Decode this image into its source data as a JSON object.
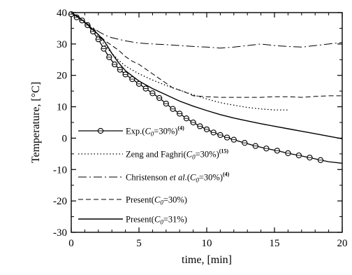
{
  "chart_data": {
    "type": "line",
    "xlabel": "time, [min]",
    "ylabel": "Temperature, [°C]",
    "xlim": [
      0,
      20
    ],
    "ylim": [
      -30,
      40
    ],
    "x_ticks": [
      0,
      5,
      10,
      15,
      20
    ],
    "y_ticks": [
      40,
      30,
      20,
      10,
      0,
      -10,
      -20,
      -30
    ],
    "grid": false,
    "legend_position": "bottom-left",
    "series": [
      {
        "name": "Exp.(C0=30%)(4)",
        "label_parts": {
          "pre": "Exp.(",
          "italic": "C",
          "sub": "0",
          "post": "=30%)",
          "sup": "(4)"
        },
        "style": "solid-circle-markers",
        "x": [
          0.0,
          0.4,
          0.8,
          1.2,
          1.6,
          2.0,
          2.4,
          2.8,
          3.2,
          3.6,
          4.0,
          4.5,
          5.0,
          5.5,
          6.0,
          6.5,
          7.0,
          7.5,
          8.0,
          8.5,
          9.0,
          9.5,
          10.0,
          10.5,
          11.0,
          11.5,
          12.0,
          12.8,
          13.6,
          14.4,
          15.2,
          16.0,
          16.8,
          17.6,
          18.4,
          19.0,
          20.0
        ],
        "y": [
          39.5,
          38.5,
          37.5,
          36.0,
          34.0,
          31.5,
          28.5,
          25.8,
          23.5,
          21.8,
          20.3,
          18.8,
          17.3,
          15.8,
          14.3,
          12.8,
          11.0,
          9.3,
          7.8,
          6.3,
          5.0,
          3.8,
          2.8,
          1.8,
          1.0,
          0.2,
          -0.5,
          -1.5,
          -2.5,
          -3.3,
          -4.0,
          -4.8,
          -5.5,
          -6.2,
          -7.0,
          -7.5,
          -8.0
        ],
        "marker_x": [
          0.0,
          0.4,
          0.8,
          1.2,
          1.6,
          2.0,
          2.4,
          2.8,
          3.2,
          3.6,
          4.0,
          4.5,
          5.0,
          5.5,
          6.0,
          6.5,
          7.0,
          7.5,
          8.0,
          8.5,
          9.0,
          9.5,
          10.0,
          10.5,
          11.0,
          11.5,
          12.0,
          12.8,
          13.6,
          14.4,
          15.2,
          16.0,
          16.8,
          17.6,
          18.4
        ],
        "marker_y": [
          39.5,
          38.5,
          37.5,
          36.0,
          34.0,
          31.5,
          28.5,
          25.8,
          23.5,
          21.8,
          20.3,
          18.8,
          17.3,
          15.8,
          14.3,
          12.8,
          11.0,
          9.3,
          7.8,
          6.3,
          5.0,
          3.8,
          2.8,
          1.8,
          1.0,
          0.2,
          -0.5,
          -1.5,
          -2.5,
          -3.3,
          -4.0,
          -4.8,
          -5.5,
          -6.2,
          -7.0
        ]
      },
      {
        "name": "Zeng and Faghri(C0=30%)(15)",
        "label_parts": {
          "pre": "Zeng and Faghri(",
          "italic": "C",
          "sub": "0",
          "post": "=30%)",
          "sup": "(15)"
        },
        "style": "dotted",
        "x": [
          0.0,
          0.5,
          1.0,
          1.5,
          2.0,
          2.5,
          3.0,
          3.5,
          4.0,
          5.0,
          6.0,
          7.0,
          8.0,
          9.0,
          10.0,
          11.0,
          12.0,
          13.0,
          14.0,
          15.0,
          16.0
        ],
        "y": [
          40.0,
          38.5,
          37.0,
          35.0,
          32.5,
          29.5,
          27.0,
          24.8,
          23.0,
          20.5,
          18.5,
          16.8,
          15.3,
          13.8,
          12.5,
          11.3,
          10.5,
          9.8,
          9.3,
          9.0,
          9.0
        ]
      },
      {
        "name": "Christenson et al.(C0=30%)(4)",
        "label_parts": {
          "pre": "Christenson ",
          "italic_text": "et al.",
          "mid": "(",
          "italic": "C",
          "sub": "0",
          "post": "=30%)",
          "sup": "(4)"
        },
        "style": "dash-dot",
        "x": [
          0.0,
          0.5,
          1.0,
          1.5,
          2.0,
          2.5,
          3.0,
          3.5,
          4.0,
          5.0,
          6.0,
          7.0,
          8.0,
          9.0,
          10.0,
          11.0,
          12.0,
          13.0,
          14.0,
          15.0,
          16.0,
          17.0,
          18.0,
          19.0,
          20.0
        ],
        "y": [
          40.0,
          38.5,
          37.0,
          35.5,
          34.0,
          32.8,
          32.0,
          31.5,
          31.0,
          30.3,
          30.0,
          29.8,
          29.5,
          29.2,
          29.0,
          28.7,
          29.0,
          29.5,
          30.0,
          29.5,
          29.2,
          29.0,
          29.5,
          30.0,
          30.5
        ]
      },
      {
        "name": "Present(C0=30%)",
        "label_parts": {
          "pre": "Present(",
          "italic": "C",
          "sub": "0",
          "post": "=30%)",
          "sup": ""
        },
        "style": "dashed",
        "x": [
          0.0,
          0.5,
          1.0,
          1.5,
          2.0,
          2.5,
          3.0,
          3.5,
          4.0,
          4.5,
          5.0,
          5.5,
          6.0,
          6.5,
          7.0,
          7.5,
          8.0,
          8.5,
          9.0,
          10.0,
          11.0,
          12.0,
          13.0,
          14.0,
          15.0,
          16.0,
          17.0,
          18.0,
          19.0,
          20.0
        ],
        "y": [
          40.0,
          38.5,
          37.0,
          35.0,
          33.0,
          31.0,
          29.5,
          28.0,
          26.0,
          24.5,
          23.5,
          22.0,
          20.5,
          19.0,
          17.5,
          16.0,
          15.3,
          14.5,
          13.5,
          13.2,
          13.0,
          13.0,
          13.0,
          13.0,
          13.2,
          13.2,
          13.0,
          13.3,
          13.5,
          13.5
        ]
      },
      {
        "name": "Present(C0=31%)",
        "label_parts": {
          "pre": "Present(",
          "italic": "C",
          "sub": "0",
          "post": "=31%)",
          "sup": ""
        },
        "style": "solid",
        "x": [
          0.0,
          0.5,
          1.0,
          1.5,
          2.0,
          2.5,
          3.0,
          3.5,
          4.0,
          4.5,
          5.0,
          6.0,
          7.0,
          8.0,
          9.0,
          10.0,
          11.0,
          12.0,
          13.0,
          14.0,
          15.0,
          16.0,
          17.0,
          18.0,
          19.0,
          20.0
        ],
        "y": [
          40.0,
          38.7,
          37.0,
          35.0,
          33.0,
          30.5,
          27.0,
          24.0,
          21.5,
          19.8,
          18.2,
          15.8,
          13.8,
          11.8,
          10.2,
          8.8,
          7.5,
          6.4,
          5.5,
          4.6,
          3.8,
          3.0,
          2.2,
          1.4,
          0.6,
          -0.2
        ]
      }
    ]
  }
}
